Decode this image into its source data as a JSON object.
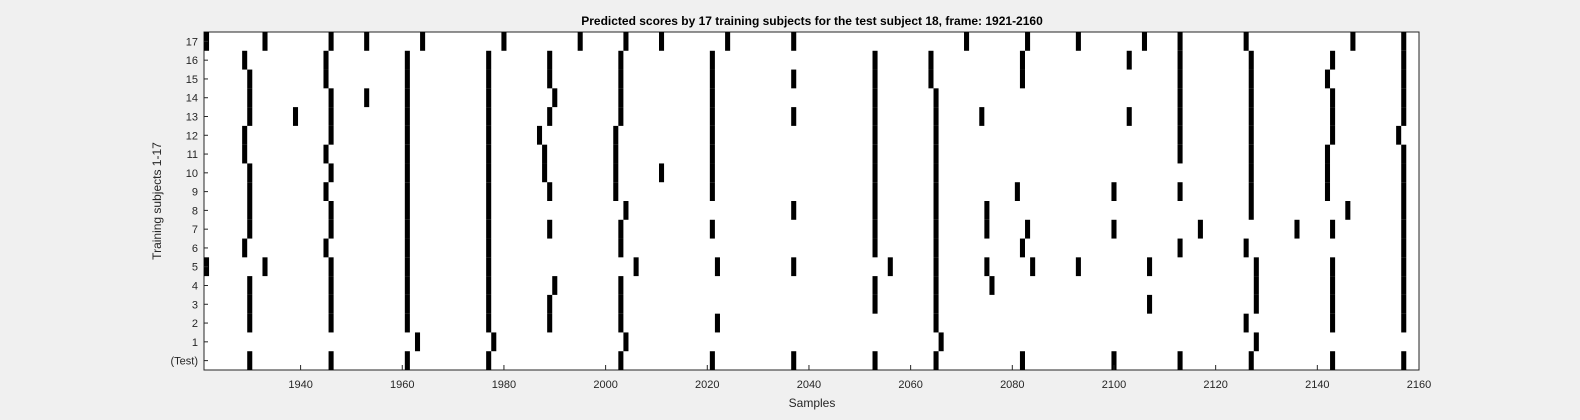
{
  "chart_data": {
    "type": "heatmap",
    "title": "Predicted scores by 17 training subjects for the test subject 18, frame: 1921-2160",
    "xlabel": "Samples",
    "ylabel": "Training subjects 1-17",
    "xlim": [
      1921,
      2160
    ],
    "xticks": [
      1940,
      1960,
      1980,
      2000,
      2020,
      2040,
      2060,
      2080,
      2100,
      2120,
      2140,
      2160
    ],
    "ytick_labels": [
      "(Test)",
      "1",
      "2",
      "3",
      "4",
      "5",
      "6",
      "7",
      "8",
      "9",
      "10",
      "11",
      "12",
      "13",
      "14",
      "15",
      "16",
      "17"
    ],
    "colors": {
      "background": "#f0f0f0",
      "plot_bg": "#ffffff",
      "mark": "#000000"
    },
    "rows": [
      {
        "label": "(Test)",
        "x": [
          1930,
          1946,
          1961,
          1977,
          2003,
          2021,
          2037,
          2053,
          2065,
          2082,
          2100,
          2113,
          2127,
          2143,
          2157
        ]
      },
      {
        "label": "1",
        "x": [
          1963,
          1978,
          2004,
          2066,
          2128
        ]
      },
      {
        "label": "2",
        "x": [
          1930,
          1946,
          1961,
          1977,
          1989,
          2003,
          2022,
          2065,
          2126,
          2143,
          2157
        ]
      },
      {
        "label": "3",
        "x": [
          1930,
          1946,
          1961,
          1977,
          1989,
          2003,
          2053,
          2065,
          2107,
          2128,
          2143,
          2157
        ]
      },
      {
        "label": "4",
        "x": [
          1930,
          1946,
          1961,
          1977,
          1990,
          2003,
          2053,
          2065,
          2076,
          2128,
          2143,
          2157
        ]
      },
      {
        "label": "5",
        "x": [
          1921,
          1933,
          1946,
          1961,
          1977,
          2006,
          2022,
          2037,
          2056,
          2065,
          2075,
          2084,
          2093,
          2107,
          2128,
          2143,
          2157
        ]
      },
      {
        "label": "6",
        "x": [
          1929,
          1945,
          1961,
          1977,
          2003,
          2053,
          2065,
          2082,
          2113,
          2126,
          2157
        ]
      },
      {
        "label": "7",
        "x": [
          1930,
          1946,
          1961,
          1977,
          1989,
          2003,
          2021,
          2053,
          2065,
          2075,
          2083,
          2100,
          2117,
          2136,
          2143,
          2157
        ]
      },
      {
        "label": "8",
        "x": [
          1930,
          1946,
          1961,
          1977,
          2004,
          2037,
          2053,
          2065,
          2075,
          2127,
          2146,
          2157
        ]
      },
      {
        "label": "9",
        "x": [
          1930,
          1945,
          1961,
          1977,
          1989,
          2002,
          2021,
          2053,
          2065,
          2081,
          2100,
          2113,
          2127,
          2142,
          2157
        ]
      },
      {
        "label": "10",
        "x": [
          1930,
          1946,
          1961,
          1977,
          1988,
          2002,
          2011,
          2021,
          2053,
          2065,
          2127,
          2142,
          2157
        ]
      },
      {
        "label": "11",
        "x": [
          1929,
          1945,
          1961,
          1977,
          1988,
          2002,
          2021,
          2053,
          2065,
          2113,
          2127,
          2142,
          2157
        ]
      },
      {
        "label": "12",
        "x": [
          1929,
          1946,
          1961,
          1977,
          1987,
          2002,
          2021,
          2053,
          2065,
          2113,
          2127,
          2143,
          2156
        ]
      },
      {
        "label": "13",
        "x": [
          1930,
          1939,
          1946,
          1961,
          1977,
          1989,
          2003,
          2021,
          2037,
          2053,
          2065,
          2074,
          2103,
          2113,
          2127,
          2143,
          2157
        ]
      },
      {
        "label": "14",
        "x": [
          1930,
          1946,
          1953,
          1961,
          1977,
          1990,
          2003,
          2021,
          2053,
          2065,
          2113,
          2127,
          2143,
          2157
        ]
      },
      {
        "label": "15",
        "x": [
          1930,
          1945,
          1961,
          1977,
          1989,
          2003,
          2021,
          2037,
          2053,
          2064,
          2082,
          2113,
          2127,
          2142,
          2157
        ]
      },
      {
        "label": "16",
        "x": [
          1929,
          1945,
          1961,
          1977,
          1989,
          2003,
          2021,
          2053,
          2064,
          2082,
          2103,
          2113,
          2127,
          2143,
          2157
        ]
      },
      {
        "label": "17",
        "x": [
          1921,
          1933,
          1946,
          1953,
          1964,
          1980,
          1995,
          2004,
          2011,
          2024,
          2037,
          2071,
          2083,
          2093,
          2106,
          2113,
          2126,
          2147,
          2157
        ]
      }
    ]
  }
}
